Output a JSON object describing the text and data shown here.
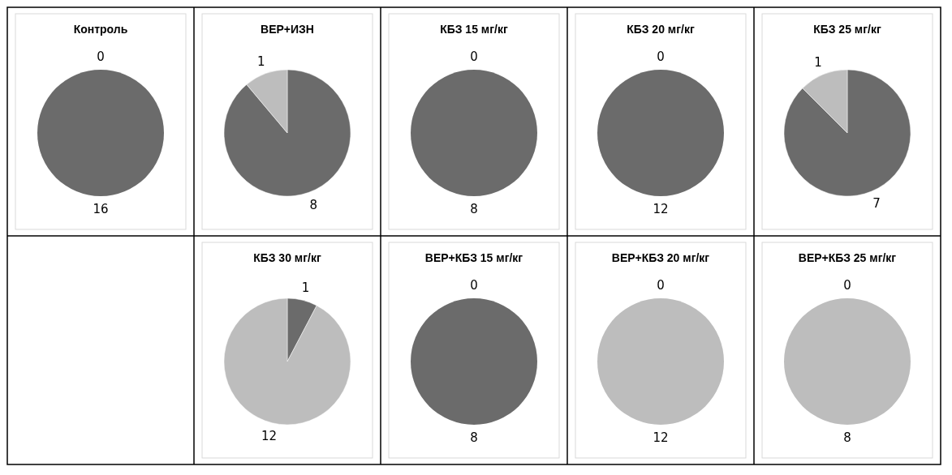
{
  "chart_data": [
    {
      "type": "pie",
      "title": "Контроль",
      "categories": [
        null,
        null
      ],
      "values": [
        16,
        0
      ],
      "colors": [
        "#6b6b6b",
        "#bdbdbd"
      ],
      "value_labels": [
        "16",
        "0"
      ]
    },
    {
      "type": "pie",
      "title": "ВЕР+ИЗН",
      "categories": [
        null,
        null
      ],
      "values": [
        8,
        1
      ],
      "colors": [
        "#6b6b6b",
        "#bdbdbd"
      ],
      "value_labels": [
        "8",
        "1"
      ]
    },
    {
      "type": "pie",
      "title": "КБЗ 15 мг/кг",
      "categories": [
        null,
        null
      ],
      "values": [
        8,
        0
      ],
      "colors": [
        "#6b6b6b",
        "#bdbdbd"
      ],
      "value_labels": [
        "8",
        "0"
      ]
    },
    {
      "type": "pie",
      "title": "КБЗ 20 мг/кг",
      "categories": [
        null,
        null
      ],
      "values": [
        12,
        0
      ],
      "colors": [
        "#6b6b6b",
        "#bdbdbd"
      ],
      "value_labels": [
        "12",
        "0"
      ]
    },
    {
      "type": "pie",
      "title": "КБЗ 25 мг/кг",
      "categories": [
        null,
        null
      ],
      "values": [
        7,
        1
      ],
      "colors": [
        "#6b6b6b",
        "#bdbdbd"
      ],
      "value_labels": [
        "7",
        "1"
      ]
    },
    {
      "type": "pie",
      "title": "КБЗ 30 мг/кг",
      "categories": [
        null,
        null
      ],
      "values": [
        1,
        12
      ],
      "colors": [
        "#6b6b6b",
        "#bdbdbd"
      ],
      "value_labels": [
        "1",
        "12"
      ]
    },
    {
      "type": "pie",
      "title": "ВЕР+КБЗ 15 мг/кг",
      "categories": [
        null,
        null
      ],
      "values": [
        8,
        0
      ],
      "colors": [
        "#6b6b6b",
        "#bdbdbd"
      ],
      "value_labels": [
        "8",
        "0"
      ]
    },
    {
      "type": "pie",
      "title": "ВЕР+КБЗ 20 мг/кг",
      "categories": [
        null,
        null
      ],
      "values": [
        0,
        12
      ],
      "colors": [
        "#6b6b6b",
        "#bdbdbd"
      ],
      "value_labels": [
        "0",
        "12"
      ]
    },
    {
      "type": "pie",
      "title": "ВЕР+КБЗ 25 мг/кг",
      "categories": [
        null,
        null
      ],
      "values": [
        0,
        8
      ],
      "colors": [
        "#6b6b6b",
        "#bdbdbd"
      ],
      "value_labels": [
        "0",
        "8"
      ]
    }
  ]
}
